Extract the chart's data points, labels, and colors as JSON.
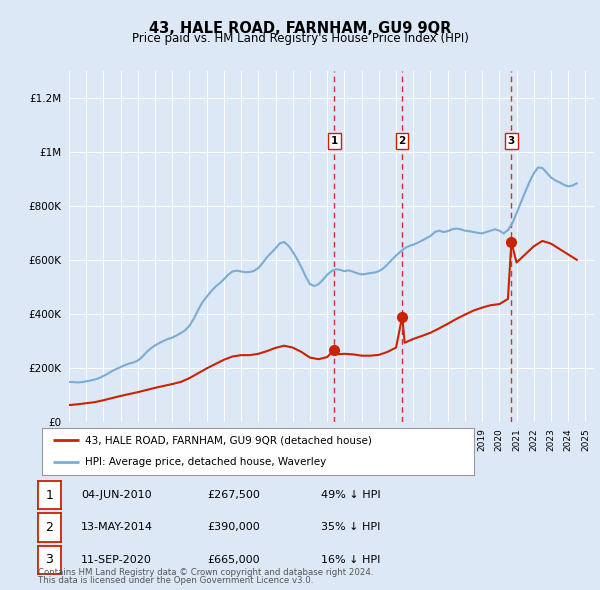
{
  "title": "43, HALE ROAD, FARNHAM, GU9 9QR",
  "subtitle": "Price paid vs. HM Land Registry's House Price Index (HPI)",
  "ytick_values": [
    0,
    200000,
    400000,
    600000,
    800000,
    1000000,
    1200000
  ],
  "ylim": [
    0,
    1300000
  ],
  "xlim_start": 1995.0,
  "xlim_end": 2025.5,
  "fig_bg_color": "#dce8f5",
  "plot_bg_color": "#dce8f5",
  "grid_color": "#ffffff",
  "hpi_color": "#7aadd4",
  "price_color": "#cc2200",
  "dashed_line_color": "#cc3333",
  "legend_box_color": "#ffffff",
  "legend_border_color": "#aaaaaa",
  "legend_entry1": "43, HALE ROAD, FARNHAM, GU9 9QR (detached house)",
  "legend_entry2": "HPI: Average price, detached house, Waverley",
  "transactions": [
    {
      "num": 1,
      "date": "04-JUN-2010",
      "price": "£267,500",
      "hpi_rel": "49% ↓ HPI",
      "year": 2010.42,
      "price_val": 267500
    },
    {
      "num": 2,
      "date": "13-MAY-2014",
      "price": "£390,000",
      "hpi_rel": "35% ↓ HPI",
      "year": 2014.36,
      "price_val": 390000
    },
    {
      "num": 3,
      "date": "11-SEP-2020",
      "price": "£665,000",
      "hpi_rel": "16% ↓ HPI",
      "year": 2020.7,
      "price_val": 665000
    }
  ],
  "footnote1": "Contains HM Land Registry data © Crown copyright and database right 2024.",
  "footnote2": "This data is licensed under the Open Government Licence v3.0.",
  "hpi_years": [
    1995.0,
    1995.25,
    1995.5,
    1995.75,
    1996.0,
    1996.25,
    1996.5,
    1996.75,
    1997.0,
    1997.25,
    1997.5,
    1997.75,
    1998.0,
    1998.25,
    1998.5,
    1998.75,
    1999.0,
    1999.25,
    1999.5,
    1999.75,
    2000.0,
    2000.25,
    2000.5,
    2000.75,
    2001.0,
    2001.25,
    2001.5,
    2001.75,
    2002.0,
    2002.25,
    2002.5,
    2002.75,
    2003.0,
    2003.25,
    2003.5,
    2003.75,
    2004.0,
    2004.25,
    2004.5,
    2004.75,
    2005.0,
    2005.25,
    2005.5,
    2005.75,
    2006.0,
    2006.25,
    2006.5,
    2006.75,
    2007.0,
    2007.25,
    2007.5,
    2007.75,
    2008.0,
    2008.25,
    2008.5,
    2008.75,
    2009.0,
    2009.25,
    2009.5,
    2009.75,
    2010.0,
    2010.25,
    2010.5,
    2010.75,
    2011.0,
    2011.25,
    2011.5,
    2011.75,
    2012.0,
    2012.25,
    2012.5,
    2012.75,
    2013.0,
    2013.25,
    2013.5,
    2013.75,
    2014.0,
    2014.25,
    2014.5,
    2014.75,
    2015.0,
    2015.25,
    2015.5,
    2015.75,
    2016.0,
    2016.25,
    2016.5,
    2016.75,
    2017.0,
    2017.25,
    2017.5,
    2017.75,
    2018.0,
    2018.25,
    2018.5,
    2018.75,
    2019.0,
    2019.25,
    2019.5,
    2019.75,
    2020.0,
    2020.25,
    2020.5,
    2020.75,
    2021.0,
    2021.25,
    2021.5,
    2021.75,
    2022.0,
    2022.25,
    2022.5,
    2022.75,
    2023.0,
    2023.25,
    2023.5,
    2023.75,
    2024.0,
    2024.25,
    2024.5
  ],
  "hpi_vals": [
    148000,
    147000,
    146000,
    147000,
    150000,
    153000,
    157000,
    162000,
    170000,
    178000,
    188000,
    196000,
    203000,
    210000,
    216000,
    220000,
    227000,
    240000,
    258000,
    272000,
    283000,
    292000,
    300000,
    307000,
    312000,
    320000,
    329000,
    339000,
    356000,
    382000,
    414000,
    443000,
    463000,
    483000,
    500000,
    513000,
    528000,
    545000,
    557000,
    560000,
    557000,
    554000,
    555000,
    559000,
    570000,
    588000,
    610000,
    626000,
    643000,
    661000,
    666000,
    652000,
    630000,
    603000,
    573000,
    538000,
    510000,
    503000,
    510000,
    526000,
    545000,
    558000,
    565000,
    563000,
    558000,
    561000,
    556000,
    550000,
    546000,
    548000,
    551000,
    553000,
    558000,
    568000,
    583000,
    600000,
    616000,
    630000,
    643000,
    651000,
    656000,
    663000,
    671000,
    680000,
    688000,
    703000,
    708000,
    703000,
    706000,
    713000,
    716000,
    713000,
    708000,
    706000,
    703000,
    700000,
    698000,
    703000,
    708000,
    713000,
    708000,
    698000,
    710000,
    735000,
    772000,
    812000,
    851000,
    888000,
    920000,
    942000,
    940000,
    923000,
    905000,
    894000,
    887000,
    878000,
    872000,
    875000,
    883000
  ],
  "pp_years": [
    1995.0,
    1995.5,
    1996.0,
    1996.5,
    1997.0,
    1997.5,
    1998.0,
    1998.5,
    1999.0,
    1999.5,
    2000.0,
    2000.5,
    2001.0,
    2001.5,
    2002.0,
    2002.5,
    2003.0,
    2003.5,
    2004.0,
    2004.5,
    2005.0,
    2005.5,
    2006.0,
    2006.5,
    2007.0,
    2007.5,
    2008.0,
    2008.5,
    2009.0,
    2009.5,
    2010.0,
    2010.42,
    2010.5,
    2011.0,
    2011.5,
    2012.0,
    2012.5,
    2013.0,
    2013.5,
    2014.0,
    2014.36,
    2014.5,
    2015.0,
    2015.5,
    2016.0,
    2016.5,
    2017.0,
    2017.5,
    2018.0,
    2018.5,
    2019.0,
    2019.5,
    2020.0,
    2020.5,
    2020.7,
    2021.0,
    2021.5,
    2022.0,
    2022.5,
    2023.0,
    2023.5,
    2024.0,
    2024.5
  ],
  "pp_vals": [
    62000,
    65000,
    69000,
    73000,
    80000,
    88000,
    96000,
    103000,
    110000,
    118000,
    126000,
    133000,
    140000,
    148000,
    162000,
    180000,
    198000,
    214000,
    230000,
    242000,
    247000,
    247000,
    252000,
    262000,
    274000,
    282000,
    275000,
    259000,
    238000,
    232000,
    240000,
    267500,
    250000,
    252000,
    250000,
    245000,
    245000,
    248000,
    259000,
    275000,
    390000,
    293000,
    307000,
    318000,
    330000,
    346000,
    363000,
    381000,
    397000,
    412000,
    423000,
    432000,
    436000,
    455000,
    665000,
    590000,
    620000,
    650000,
    670000,
    660000,
    640000,
    620000,
    600000
  ]
}
